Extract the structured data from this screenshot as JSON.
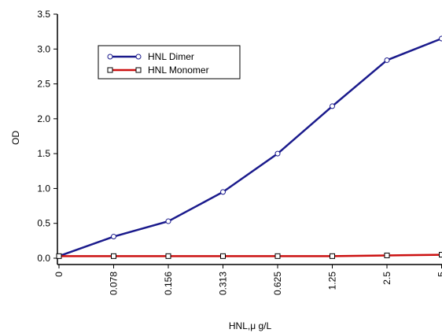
{
  "chart_data": {
    "type": "line",
    "xlabel": "HNL,μ g/L",
    "ylabel": "OD",
    "categories": [
      "0",
      "0.078",
      "0.156",
      "0.313",
      "0.625",
      "1.25",
      "2.5",
      "5"
    ],
    "y_ticks": [
      "0.0",
      "0.5",
      "1.0",
      "1.5",
      "2.0",
      "2.5",
      "3.0",
      "3.5"
    ],
    "ylim": [
      0,
      3.5
    ],
    "grid": false,
    "legend_position": "top-left",
    "series": [
      {
        "name": "HNL Dimer",
        "color": "#1a1a8c",
        "marker": "circle",
        "values": [
          0.03,
          0.31,
          0.53,
          0.95,
          1.5,
          2.18,
          2.84,
          3.15
        ]
      },
      {
        "name": "HNL Monomer",
        "color": "#cc1111",
        "marker": "square",
        "values": [
          0.03,
          0.03,
          0.03,
          0.03,
          0.03,
          0.03,
          0.04,
          0.05
        ]
      }
    ]
  }
}
